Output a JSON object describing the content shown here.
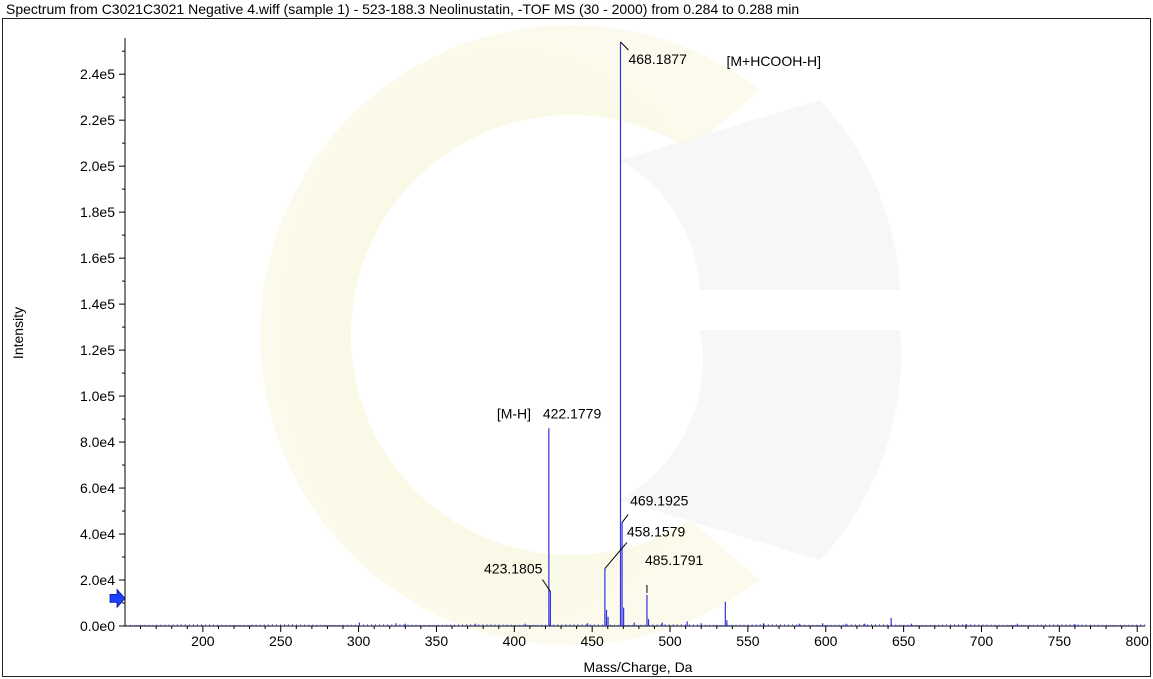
{
  "title": "Spectrum from C3021C3021 Negative 4.wiff (sample 1) - 523-188.3 Neolinustatin, -TOF MS (30 - 2000) from 0.284 to 0.288 min",
  "chart_data": {
    "type": "line",
    "xlabel": "Mass/Charge, Da",
    "ylabel": "Intensity",
    "xlim": [
      150,
      805
    ],
    "ylim": [
      0,
      254000
    ],
    "xticks": [
      "200",
      "250",
      "300",
      "350",
      "400",
      "450",
      "500",
      "550",
      "600",
      "650",
      "700",
      "750",
      "800"
    ],
    "yticks": [
      "0.0e0",
      "2.0e4",
      "4.0e4",
      "6.0e4",
      "8.0e4",
      "1.0e5",
      "1.2e5",
      "1.4e5",
      "1.6e5",
      "1.8e5",
      "2.0e5",
      "2.2e5",
      "2.4e5"
    ],
    "grid": false,
    "series": [
      {
        "color": "#3333dd",
        "peaks": [
          [
            422.1779,
            86000
          ],
          [
            423.1805,
            15000
          ],
          [
            458.1579,
            25000
          ],
          [
            459.2,
            7000
          ],
          [
            460.2,
            4000
          ],
          [
            468.1877,
            254000
          ],
          [
            469.1925,
            45000
          ],
          [
            470.2,
            8000
          ],
          [
            485.1791,
            13500
          ],
          [
            486.2,
            3000
          ],
          [
            511.0,
            2000
          ],
          [
            535.5,
            10500
          ],
          [
            536.5,
            2500
          ],
          [
            642.0,
            3500
          ],
          [
            300.5,
            1500
          ],
          [
            324.0,
            1200
          ],
          [
            330.0,
            1000
          ],
          [
            375.0,
            1000
          ],
          [
            407.0,
            1000
          ],
          [
            447.0,
            1200
          ],
          [
            477.0,
            1500
          ],
          [
            495.0,
            1500
          ],
          [
            520.0,
            1200
          ],
          [
            560.0,
            1200
          ],
          [
            583.0,
            1000
          ],
          [
            598.0,
            1200
          ],
          [
            613.0,
            1000
          ],
          [
            625.0,
            1000
          ],
          [
            655.0,
            1000
          ],
          [
            690.0,
            800
          ],
          [
            723.0,
            1000
          ],
          [
            760.0,
            800
          ]
        ]
      }
    ],
    "annotations": [
      {
        "text": "468.1877",
        "x": 468.1877,
        "y": 254000
      },
      {
        "text": "[M+HCOOH-H]",
        "x": 468.1877,
        "y": 254000
      },
      {
        "text": "[M-H]",
        "x": 422.1779,
        "y": 86000
      },
      {
        "text": "422.1779",
        "x": 422.1779,
        "y": 86000
      },
      {
        "text": "469.1925",
        "x": 469.1925,
        "y": 45000
      },
      {
        "text": "458.1579",
        "x": 458.1579,
        "y": 25000
      },
      {
        "text": "423.1805",
        "x": 423.1805,
        "y": 15000
      },
      {
        "text": "485.1791",
        "x": 485.1791,
        "y": 13500
      }
    ],
    "marker": {
      "y": 12000,
      "color": "#1f3fff"
    }
  }
}
